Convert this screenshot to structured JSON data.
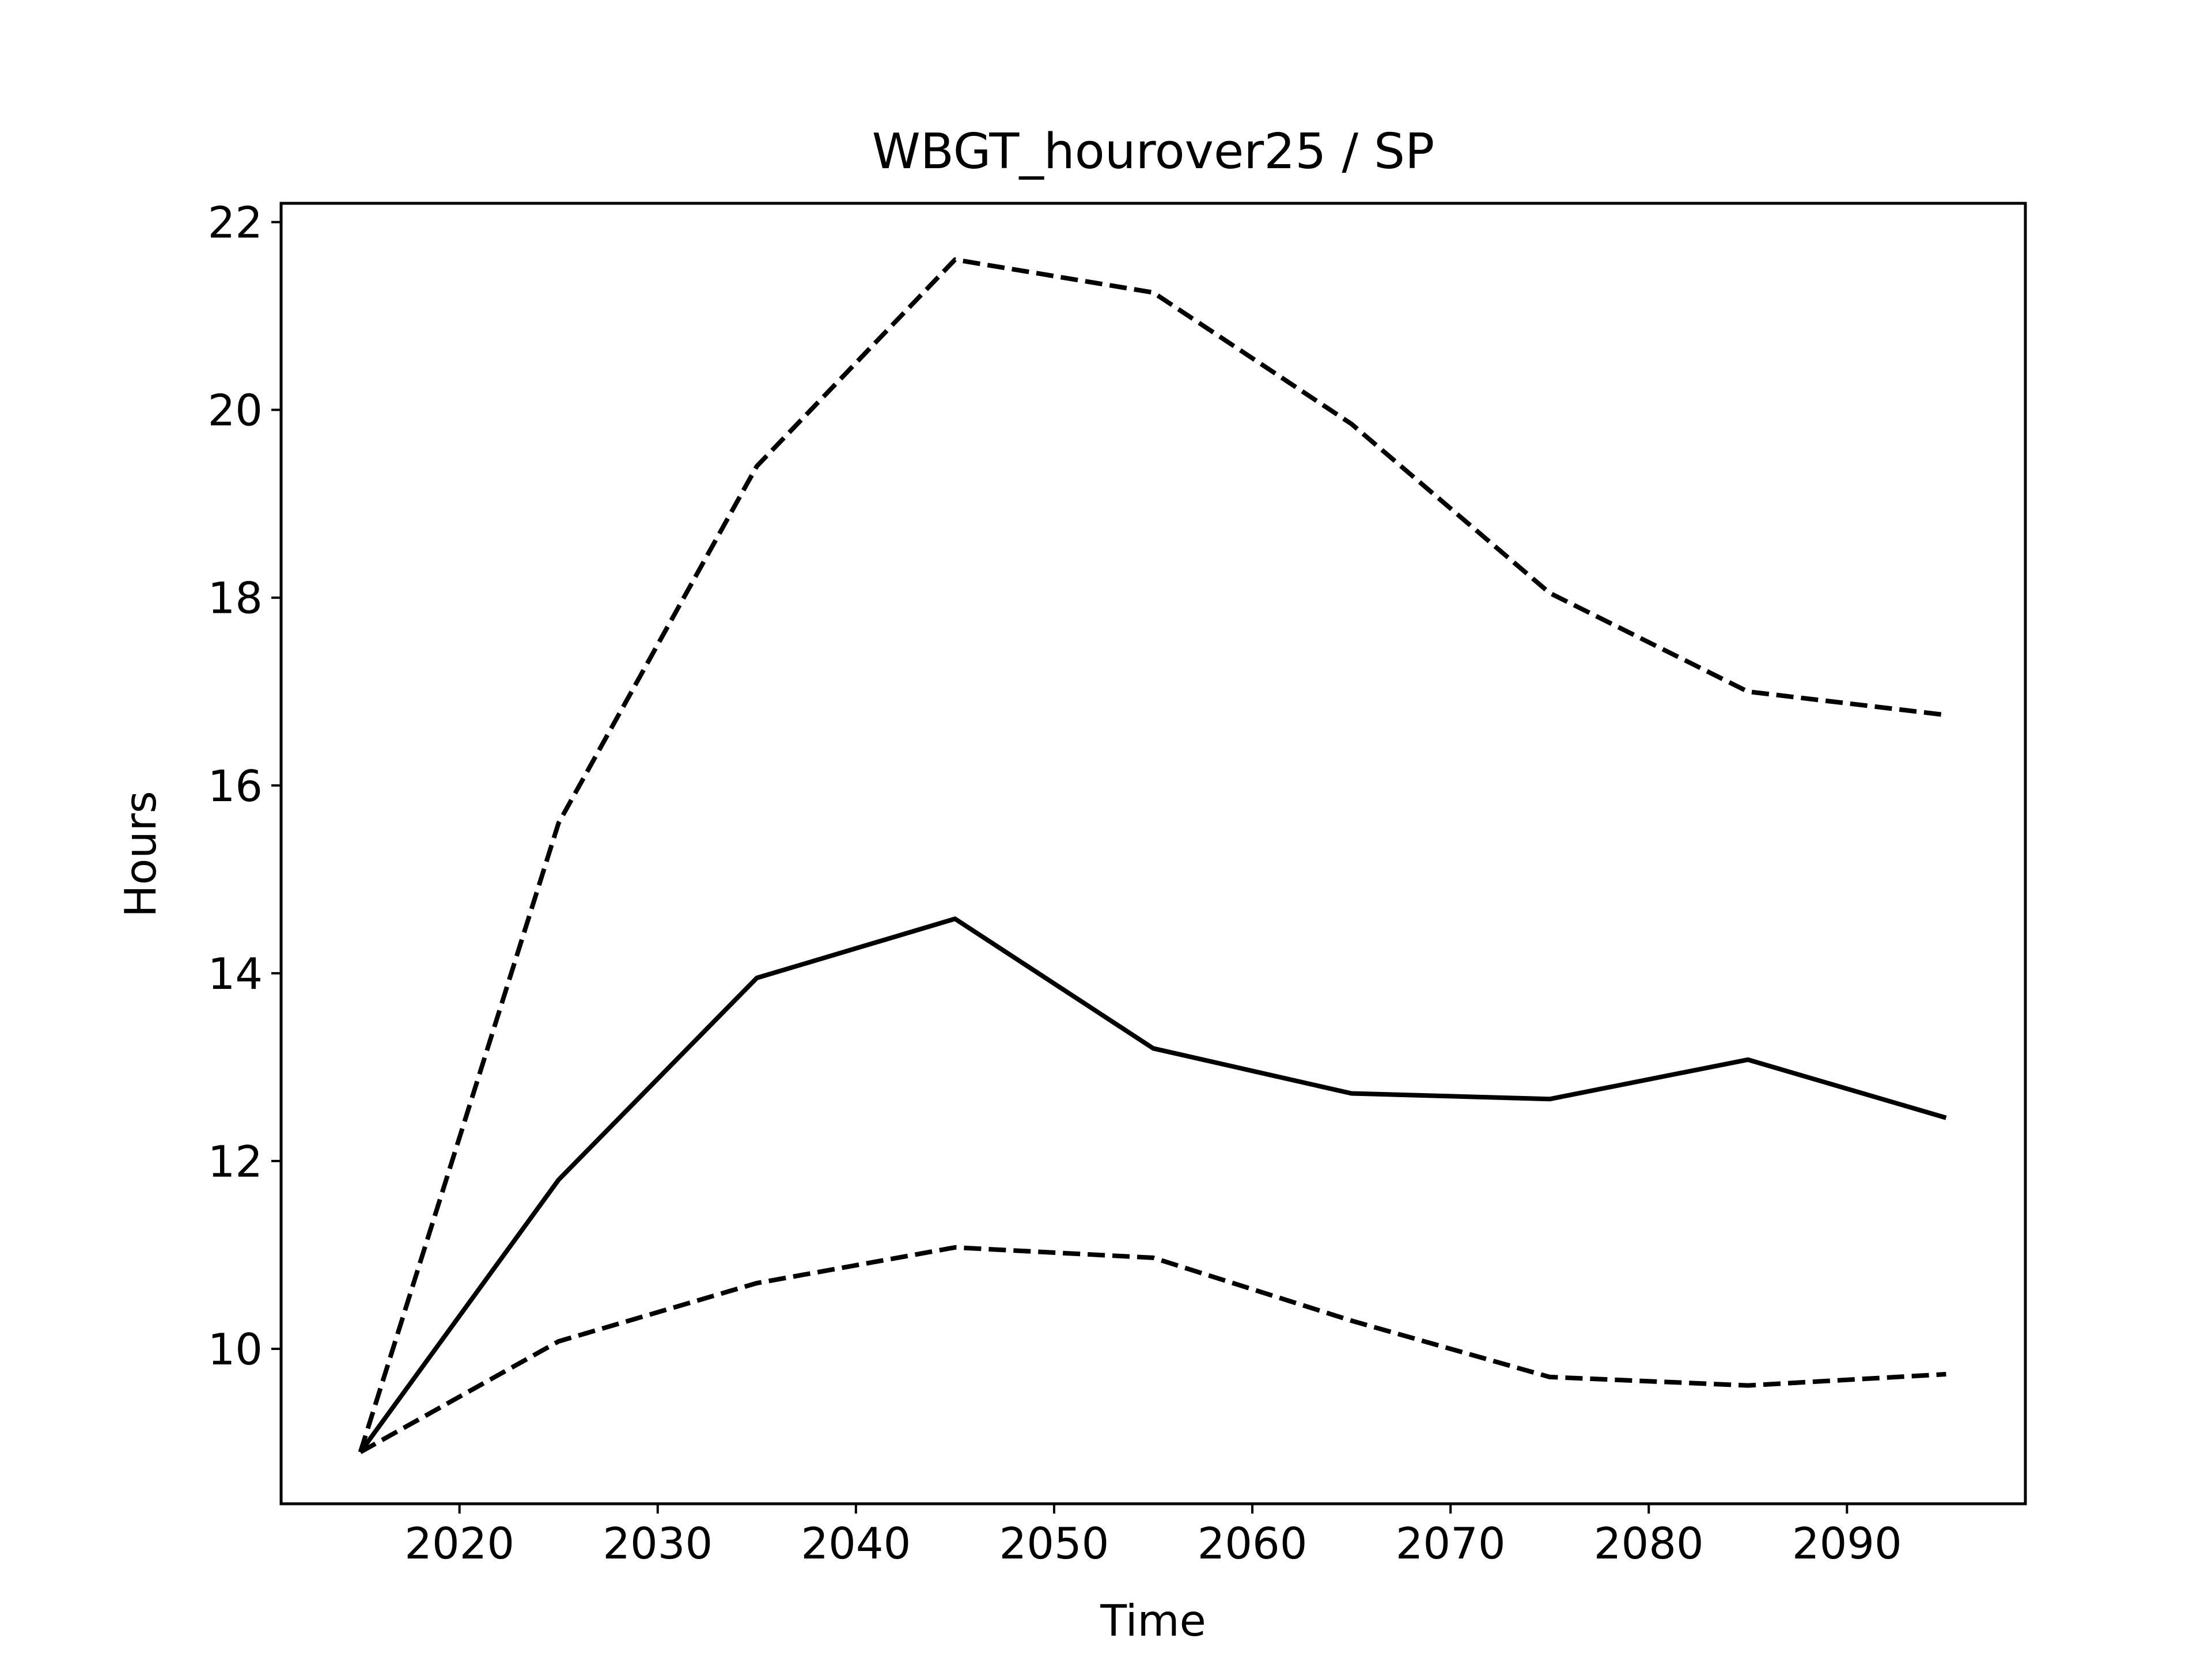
{
  "chart_data": {
    "type": "line",
    "title": "WBGT_hourover25 / SP",
    "xlabel": "Time",
    "ylabel": "Hours",
    "xlim": [
      2011,
      2099
    ],
    "ylim": [
      8.35,
      22.2
    ],
    "x_ticks": [
      2020,
      2030,
      2040,
      2050,
      2060,
      2070,
      2080,
      2090
    ],
    "y_ticks": [
      10,
      12,
      14,
      16,
      18,
      20,
      22
    ],
    "grid": false,
    "legend": "none",
    "x": [
      2015,
      2025,
      2035,
      2045,
      2055,
      2065,
      2075,
      2085,
      2095
    ],
    "series": [
      {
        "style": "dashed",
        "color": "#000000",
        "values": [
          8.9,
          15.6,
          19.4,
          21.6,
          21.25,
          19.85,
          18.05,
          17.0,
          16.75
        ]
      },
      {
        "style": "solid",
        "color": "#000000",
        "values": [
          8.9,
          11.8,
          13.95,
          14.58,
          13.2,
          12.72,
          12.66,
          13.08,
          12.46
        ]
      },
      {
        "style": "dashed",
        "color": "#000000",
        "values": [
          8.9,
          10.08,
          10.7,
          11.08,
          10.97,
          10.3,
          9.7,
          9.61,
          9.73
        ]
      }
    ]
  }
}
